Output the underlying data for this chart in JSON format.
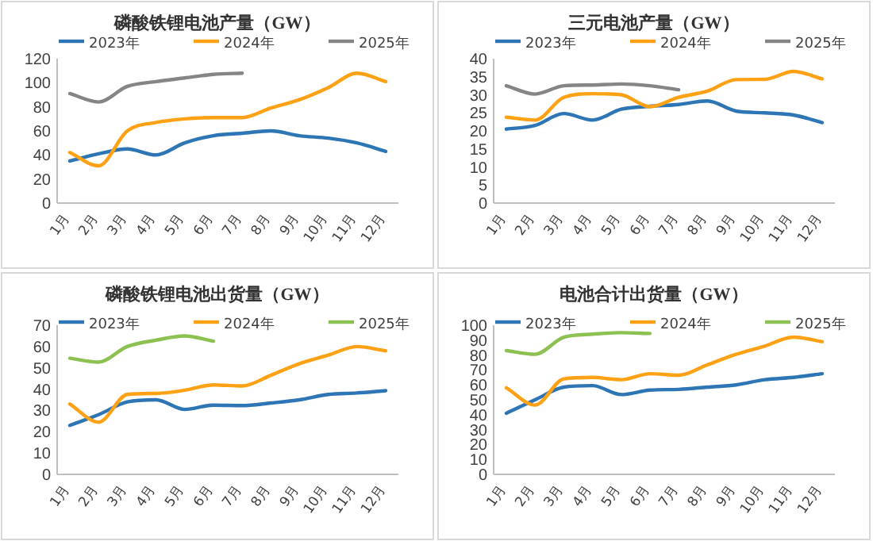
{
  "chart_data": [
    {
      "type": "line",
      "title": "磷酸铁锂电池产量（GW）",
      "categories": [
        "1月",
        "2月",
        "3月",
        "4月",
        "5月",
        "6月",
        "7月",
        "8月",
        "9月",
        "10月",
        "11月",
        "12月"
      ],
      "ylim": [
        0,
        120
      ],
      "yticks": [
        0,
        20,
        40,
        60,
        80,
        100,
        120
      ],
      "legend": "top",
      "series": [
        {
          "name": "2023年",
          "color": "#2e75b6",
          "values": [
            35,
            41,
            45,
            40,
            50,
            56,
            58,
            60,
            56,
            54,
            50,
            43
          ]
        },
        {
          "name": "2024年",
          "color": "#ffa114",
          "values": [
            42,
            31,
            60,
            67,
            70,
            71,
            71,
            79,
            86,
            96,
            108,
            101
          ]
        },
        {
          "name": "2025年",
          "color": "#858585",
          "values": [
            91,
            84,
            97,
            101,
            104,
            107,
            108,
            null,
            null,
            null,
            null,
            null
          ]
        }
      ]
    },
    {
      "type": "line",
      "title": "三元电池产量（GW）",
      "categories": [
        "1月",
        "2月",
        "3月",
        "4月",
        "5月",
        "6月",
        "7月",
        "8月",
        "9月",
        "10月",
        "11月",
        "12月"
      ],
      "ylim": [
        0,
        40
      ],
      "yticks": [
        0,
        5,
        10,
        15,
        20,
        25,
        30,
        35,
        40
      ],
      "legend": "top",
      "series": [
        {
          "name": "2023年",
          "color": "#2e75b6",
          "values": [
            20.5,
            21.5,
            24.8,
            23,
            26,
            26.8,
            27.3,
            28.3,
            25.5,
            25,
            24.4,
            22.3
          ]
        },
        {
          "name": "2024年",
          "color": "#ffa114",
          "values": [
            23.8,
            23,
            29.3,
            30.3,
            30,
            26.7,
            29.3,
            31,
            34.2,
            34.3,
            36.5,
            34.4
          ]
        },
        {
          "name": "2025年",
          "color": "#858585",
          "values": [
            32.5,
            30.2,
            32.5,
            32.7,
            33,
            32.5,
            31.4,
            null,
            null,
            null,
            null,
            null
          ]
        }
      ]
    },
    {
      "type": "line",
      "title": "磷酸铁锂电池出货量（GW）",
      "categories": [
        "1月",
        "2月",
        "3月",
        "4月",
        "5月",
        "6月",
        "7月",
        "8月",
        "9月",
        "10月",
        "11月",
        "12月"
      ],
      "ylim": [
        0,
        70
      ],
      "yticks": [
        0,
        10,
        20,
        30,
        40,
        50,
        60,
        70
      ],
      "legend": "top",
      "series": [
        {
          "name": "2023年",
          "color": "#2e75b6",
          "values": [
            23,
            28,
            34,
            35,
            30.5,
            32.5,
            32.3,
            33.5,
            35,
            37.5,
            38.2,
            39.3
          ]
        },
        {
          "name": "2024年",
          "color": "#ffa114",
          "values": [
            33,
            24.5,
            37.5,
            38,
            39.5,
            42,
            41.5,
            46.5,
            52,
            56,
            60,
            58
          ]
        },
        {
          "name": "2025年",
          "color": "#8cc152",
          "values": [
            54.5,
            52.7,
            60,
            63,
            65,
            62.5,
            null,
            null,
            null,
            null,
            null,
            null
          ]
        }
      ]
    },
    {
      "type": "line",
      "title": "电池合计出货量（GW）",
      "categories": [
        "1月",
        "2月",
        "3月",
        "4月",
        "5月",
        "6月",
        "7月",
        "8月",
        "9月",
        "10月",
        "11月",
        "12月"
      ],
      "ylim": [
        0,
        100
      ],
      "yticks": [
        0,
        10,
        20,
        30,
        40,
        50,
        60,
        70,
        80,
        90,
        100
      ],
      "legend": "top",
      "series": [
        {
          "name": "2023年",
          "color": "#2e75b6",
          "values": [
            41,
            50,
            58.5,
            59.5,
            53.5,
            56.5,
            57,
            58.5,
            60,
            63.5,
            65,
            67.5
          ]
        },
        {
          "name": "2024年",
          "color": "#ffa114",
          "values": [
            58,
            46.5,
            64,
            65,
            63.5,
            67.5,
            66.5,
            73.5,
            80.5,
            86,
            92,
            89
          ]
        },
        {
          "name": "2025年",
          "color": "#8cc152",
          "values": [
            83,
            80.5,
            92,
            94,
            95,
            94.5,
            null,
            null,
            null,
            null,
            null,
            null
          ]
        }
      ]
    }
  ]
}
